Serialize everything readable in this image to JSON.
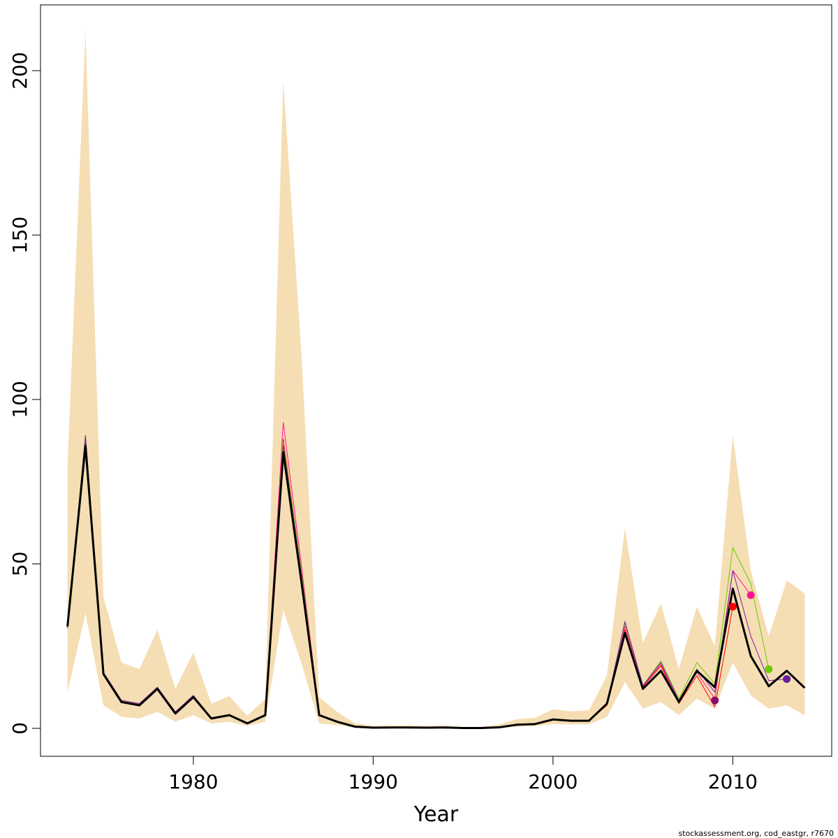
{
  "chart_data": {
    "type": "line",
    "title": "",
    "xlabel": "Year",
    "ylabel": "",
    "xlim": [
      1971.5,
      2015.5
    ],
    "ylim": [
      -8.5,
      220
    ],
    "x_ticks": [
      1980,
      1990,
      2000,
      2010
    ],
    "y_ticks": [
      0,
      50,
      100,
      150,
      200
    ],
    "grid": false,
    "credit": "stockassessment.org, cod_eastgr, r7670",
    "band": {
      "color": "#f5deb3",
      "x": [
        1973,
        1974,
        1975,
        1976,
        1977,
        1978,
        1979,
        1980,
        1981,
        1982,
        1983,
        1984,
        1985,
        1986,
        1987,
        1988,
        1989,
        1990,
        1991,
        1992,
        1993,
        1994,
        1995,
        1996,
        1997,
        1998,
        1999,
        2000,
        2001,
        2002,
        2003,
        2004,
        2005,
        2006,
        2007,
        2008,
        2009,
        2010,
        2011,
        2012,
        2013,
        2014
      ],
      "lower": [
        11,
        35,
        7,
        3.5,
        3,
        5,
        2,
        4,
        1.5,
        2,
        0.8,
        2,
        36,
        20,
        1.5,
        1,
        0.2,
        0.1,
        0.1,
        0.1,
        0.1,
        0.1,
        0.05,
        0.05,
        0.1,
        0.5,
        0.7,
        1.3,
        1.2,
        1.2,
        3.5,
        14,
        6,
        8,
        4,
        9,
        6,
        20,
        10,
        6,
        7,
        4
      ],
      "upper": [
        80,
        212,
        40,
        20,
        18,
        30,
        12,
        23,
        7.5,
        9.8,
        3.8,
        9,
        197,
        115,
        9.5,
        5,
        1.5,
        0.8,
        0.9,
        0.9,
        0.7,
        0.9,
        0.4,
        0.4,
        1.2,
        2.8,
        3.2,
        5.8,
        5.2,
        5.5,
        16,
        61,
        26,
        38,
        18,
        37,
        25,
        89,
        48,
        28,
        45,
        41
      ]
    },
    "series": [
      {
        "name": "",
        "color": "#000000",
        "width": 3,
        "x": [
          1973,
          1974,
          1975,
          1976,
          1977,
          1978,
          1979,
          1980,
          1981,
          1982,
          1983,
          1984,
          1985,
          1986,
          1987,
          1988,
          1989,
          1990,
          1991,
          1992,
          1993,
          1994,
          1995,
          1996,
          1997,
          1998,
          1999,
          2000,
          2001,
          2002,
          2003,
          2004,
          2005,
          2006,
          2007,
          2008,
          2009,
          2010,
          2011,
          2012,
          2013,
          2014
        ],
        "y": [
          31,
          86,
          16.5,
          8,
          7,
          12,
          4.5,
          9.5,
          3,
          4,
          1.5,
          4,
          84,
          45,
          4,
          2,
          0.5,
          0.2,
          0.25,
          0.25,
          0.2,
          0.25,
          0.1,
          0.1,
          0.3,
          1.1,
          1.3,
          2.7,
          2.3,
          2.3,
          7.5,
          29,
          12,
          17.5,
          8,
          17.5,
          12.5,
          42.5,
          22,
          12.8,
          17.5,
          12.3
        ]
      },
      {
        "name": "",
        "color": "#ff0000",
        "width": 1,
        "x": [
          1973,
          1974,
          1975,
          1976,
          1977,
          1978,
          1979,
          1980,
          1981,
          1982,
          1983,
          1984,
          1985,
          1986,
          1987,
          1988,
          1989,
          1990,
          1991,
          1992,
          1993,
          1994,
          1995,
          1996,
          1997,
          1998,
          1999,
          2000,
          2001,
          2002,
          2003,
          2004,
          2005,
          2006,
          2007,
          2008,
          2009,
          2010
        ],
        "y": [
          30.5,
          88,
          17,
          8.5,
          7.5,
          12.5,
          5,
          10,
          3.2,
          4.2,
          1.6,
          4.2,
          88,
          48,
          4.2,
          2.1,
          0.5,
          0.2,
          0.25,
          0.25,
          0.2,
          0.25,
          0.1,
          0.1,
          0.3,
          1.1,
          1.3,
          2.7,
          2.3,
          2.3,
          7,
          30,
          12.5,
          19,
          7.5,
          16,
          6.5,
          37
        ]
      },
      {
        "name": "",
        "color": "#ff1493",
        "width": 1,
        "x": [
          1973,
          1974,
          1975,
          1976,
          1977,
          1978,
          1979,
          1980,
          1981,
          1982,
          1983,
          1984,
          1985,
          1986,
          1987,
          1988,
          1989,
          1990,
          1991,
          1992,
          1993,
          1994,
          1995,
          1996,
          1997,
          1998,
          1999,
          2000,
          2001,
          2002,
          2003,
          2004,
          2005,
          2006,
          2007,
          2008,
          2009,
          2010,
          2011
        ],
        "y": [
          30.5,
          89,
          17,
          8.5,
          7.5,
          12.5,
          5,
          10,
          3.2,
          4.2,
          1.6,
          4.2,
          93,
          50,
          4.2,
          2.1,
          0.5,
          0.2,
          0.25,
          0.25,
          0.2,
          0.25,
          0.1,
          0.1,
          0.3,
          1.1,
          1.3,
          2.7,
          2.3,
          2.3,
          7.2,
          31,
          12.8,
          19.5,
          8,
          17,
          9,
          48,
          40.5
        ]
      },
      {
        "name": "",
        "color": "#66cc00",
        "width": 1,
        "x": [
          1973,
          1974,
          1975,
          1976,
          1977,
          1978,
          1979,
          1980,
          1981,
          1982,
          1983,
          1984,
          1985,
          1986,
          1987,
          1988,
          1989,
          1990,
          1991,
          1992,
          1993,
          1994,
          1995,
          1996,
          1997,
          1998,
          1999,
          2000,
          2001,
          2002,
          2003,
          2004,
          2005,
          2006,
          2007,
          2008,
          2009,
          2010,
          2011,
          2012
        ],
        "y": [
          30.5,
          89,
          17,
          8.5,
          7.5,
          12.5,
          5,
          10,
          3.2,
          4.2,
          1.6,
          4.2,
          87,
          48,
          4.2,
          2.1,
          0.5,
          0.2,
          0.25,
          0.25,
          0.2,
          0.25,
          0.1,
          0.1,
          0.3,
          1.1,
          1.3,
          2.7,
          2.3,
          2.3,
          7.5,
          32,
          13,
          20.5,
          9,
          20,
          13.5,
          55,
          44,
          18
        ]
      },
      {
        "name": "",
        "color": "#7b1fa2",
        "width": 1,
        "x": [
          1973,
          1974,
          1975,
          1976,
          1977,
          1978,
          1979,
          1980,
          1981,
          1982,
          1983,
          1984,
          1985,
          1986,
          1987,
          1988,
          1989,
          1990,
          1991,
          1992,
          1993,
          1994,
          1995,
          1996,
          1997,
          1998,
          1999,
          2000,
          2001,
          2002,
          2003,
          2004,
          2005,
          2006,
          2007,
          2008,
          2009,
          2010,
          2011,
          2012,
          2013
        ],
        "y": [
          30.5,
          89,
          17,
          8.5,
          7.5,
          12.5,
          5,
          10,
          3.2,
          4.2,
          1.6,
          4.2,
          86,
          47,
          4.2,
          2.1,
          0.5,
          0.2,
          0.25,
          0.25,
          0.2,
          0.25,
          0.1,
          0.1,
          0.3,
          1.1,
          1.3,
          2.7,
          2.3,
          2.3,
          7.5,
          32.5,
          13,
          20,
          8.5,
          18,
          11,
          48,
          28,
          14.5,
          15
        ]
      }
    ],
    "end_points": [
      {
        "x": 2009,
        "y": 8.5,
        "color": "#8b0a6b"
      },
      {
        "x": 2010,
        "y": 37,
        "color": "#ff0000"
      },
      {
        "x": 2011,
        "y": 40.5,
        "color": "#ff1493"
      },
      {
        "x": 2012,
        "y": 18,
        "color": "#66cc00"
      },
      {
        "x": 2013,
        "y": 15,
        "color": "#6a1b9a"
      }
    ]
  }
}
